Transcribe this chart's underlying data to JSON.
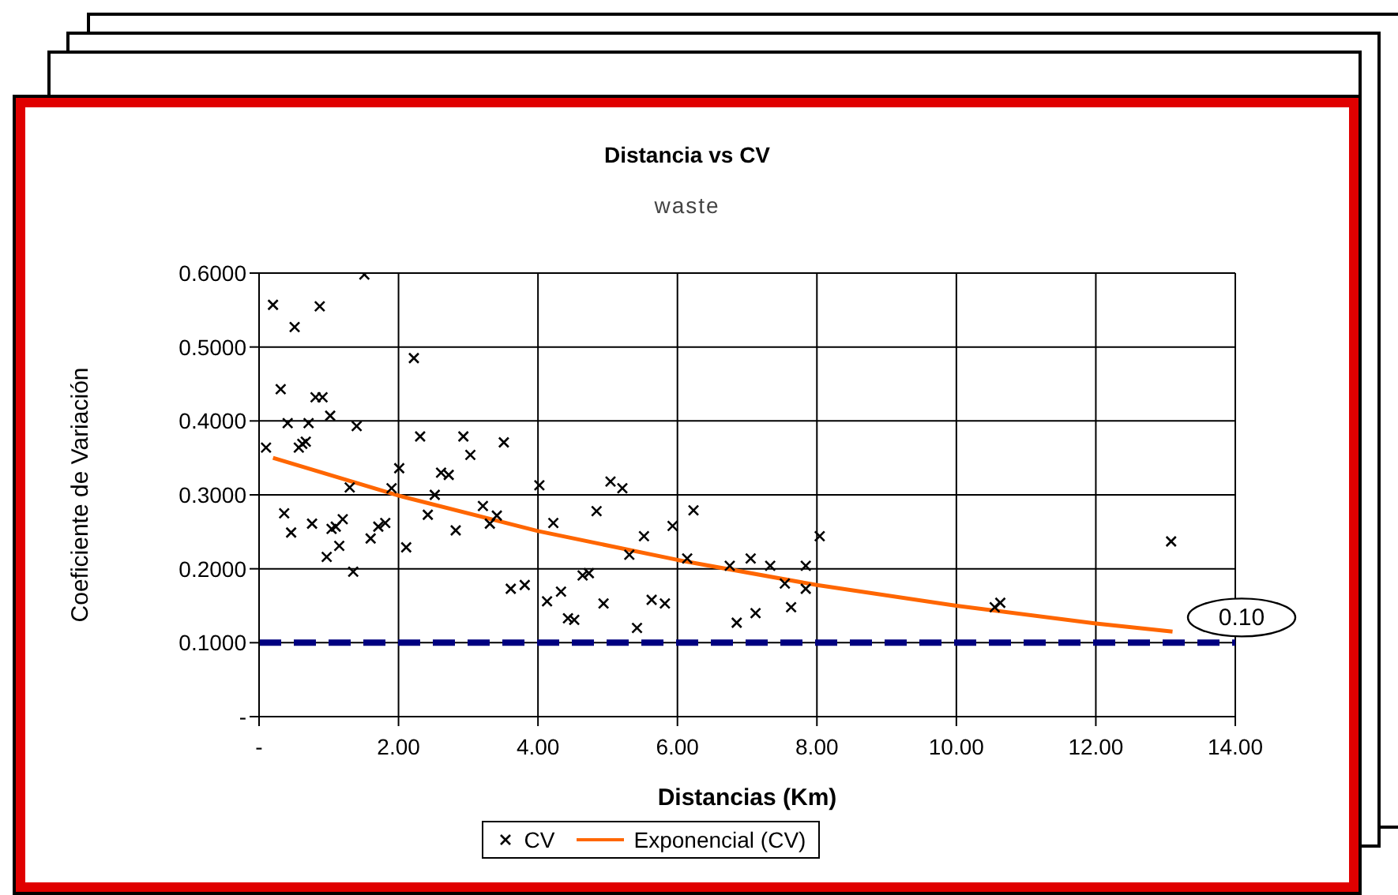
{
  "chart_data": {
    "type": "scatter",
    "title": "Distancia  vs  CV",
    "subtitle": "waste",
    "xlabel": "Distancias (Km)",
    "ylabel": "Coeficiente de Variación",
    "xlim": [
      0,
      14
    ],
    "xticks": [
      {
        "value": 0,
        "label": "-"
      },
      {
        "value": 2,
        "label": "2.00"
      },
      {
        "value": 4,
        "label": "4.00"
      },
      {
        "value": 6,
        "label": "6.00"
      },
      {
        "value": 8,
        "label": "8.00"
      },
      {
        "value": 10,
        "label": "10.00"
      },
      {
        "value": 12,
        "label": "12.00"
      },
      {
        "value": 14,
        "label": "14.00"
      }
    ],
    "ylim": [
      0,
      0.6
    ],
    "yticks": [
      {
        "value": 0,
        "label": "-"
      },
      {
        "value": 0.1,
        "label": "0.1000"
      },
      {
        "value": 0.2,
        "label": "0.2000"
      },
      {
        "value": 0.3,
        "label": "0.3000"
      },
      {
        "value": 0.4,
        "label": "0.4000"
      },
      {
        "value": 0.5,
        "label": "0.5000"
      },
      {
        "value": 0.6,
        "label": "0.6000"
      }
    ],
    "grid": true,
    "legend": "bottom",
    "series": [
      {
        "name": "CV",
        "marker": "cross",
        "color": "#000000",
        "x": [
          0.2,
          0.87,
          0.51,
          1.51,
          2.22,
          0.31,
          0.81,
          0.91,
          0.41,
          0.71,
          1.02,
          1.4,
          0.1,
          0.57,
          0.62,
          0.67,
          2.31,
          2.93,
          3.03,
          3.51,
          2.01,
          2.61,
          2.72,
          1.3,
          1.9,
          4.02,
          2.52,
          0.36,
          0.46,
          0.76,
          1.04,
          1.1,
          1.2,
          0.97,
          1.15,
          1.35,
          1.6,
          1.71,
          1.81,
          2.11,
          2.42,
          2.82,
          3.21,
          3.31,
          3.41,
          4.22,
          3.61,
          3.81,
          4.13,
          4.33,
          4.43,
          4.52,
          4.64,
          4.73,
          5.04,
          5.21,
          4.84,
          6.23,
          5.93,
          5.52,
          8.04,
          5.31,
          6.14,
          6.75,
          7.05,
          7.33,
          7.84,
          7.54,
          7.84,
          4.94,
          5.63,
          5.82,
          7.63,
          7.12,
          6.85,
          5.42,
          10.63,
          10.55,
          13.08
        ],
        "values": [
          0.557,
          0.555,
          0.527,
          0.598,
          0.485,
          0.443,
          0.432,
          0.432,
          0.397,
          0.397,
          0.407,
          0.393,
          0.364,
          0.364,
          0.369,
          0.372,
          0.379,
          0.379,
          0.354,
          0.371,
          0.336,
          0.33,
          0.327,
          0.31,
          0.309,
          0.313,
          0.3,
          0.275,
          0.249,
          0.261,
          0.254,
          0.257,
          0.267,
          0.216,
          0.231,
          0.196,
          0.241,
          0.257,
          0.262,
          0.229,
          0.273,
          0.252,
          0.285,
          0.261,
          0.272,
          0.262,
          0.173,
          0.178,
          0.156,
          0.169,
          0.133,
          0.131,
          0.191,
          0.194,
          0.318,
          0.309,
          0.278,
          0.279,
          0.258,
          0.244,
          0.244,
          0.219,
          0.214,
          0.204,
          0.214,
          0.204,
          0.204,
          0.18,
          0.173,
          0.153,
          0.158,
          0.153,
          0.148,
          0.14,
          0.127,
          0.12,
          0.154,
          0.148,
          0.237
        ]
      },
      {
        "name": "Exponencial (CV)",
        "type": "line",
        "marker": "none",
        "line_style": "solid",
        "color": "#ff6600",
        "x": [
          0.2,
          2,
          4,
          6,
          8,
          10,
          12,
          13.1
        ],
        "values": [
          0.35,
          0.299,
          0.251,
          0.212,
          0.178,
          0.15,
          0.126,
          0.115
        ]
      }
    ],
    "ref_lines": [
      {
        "axis": "y",
        "value": 0.1,
        "label": "0.10",
        "color": "#000080",
        "line_style": "dashed"
      }
    ]
  }
}
